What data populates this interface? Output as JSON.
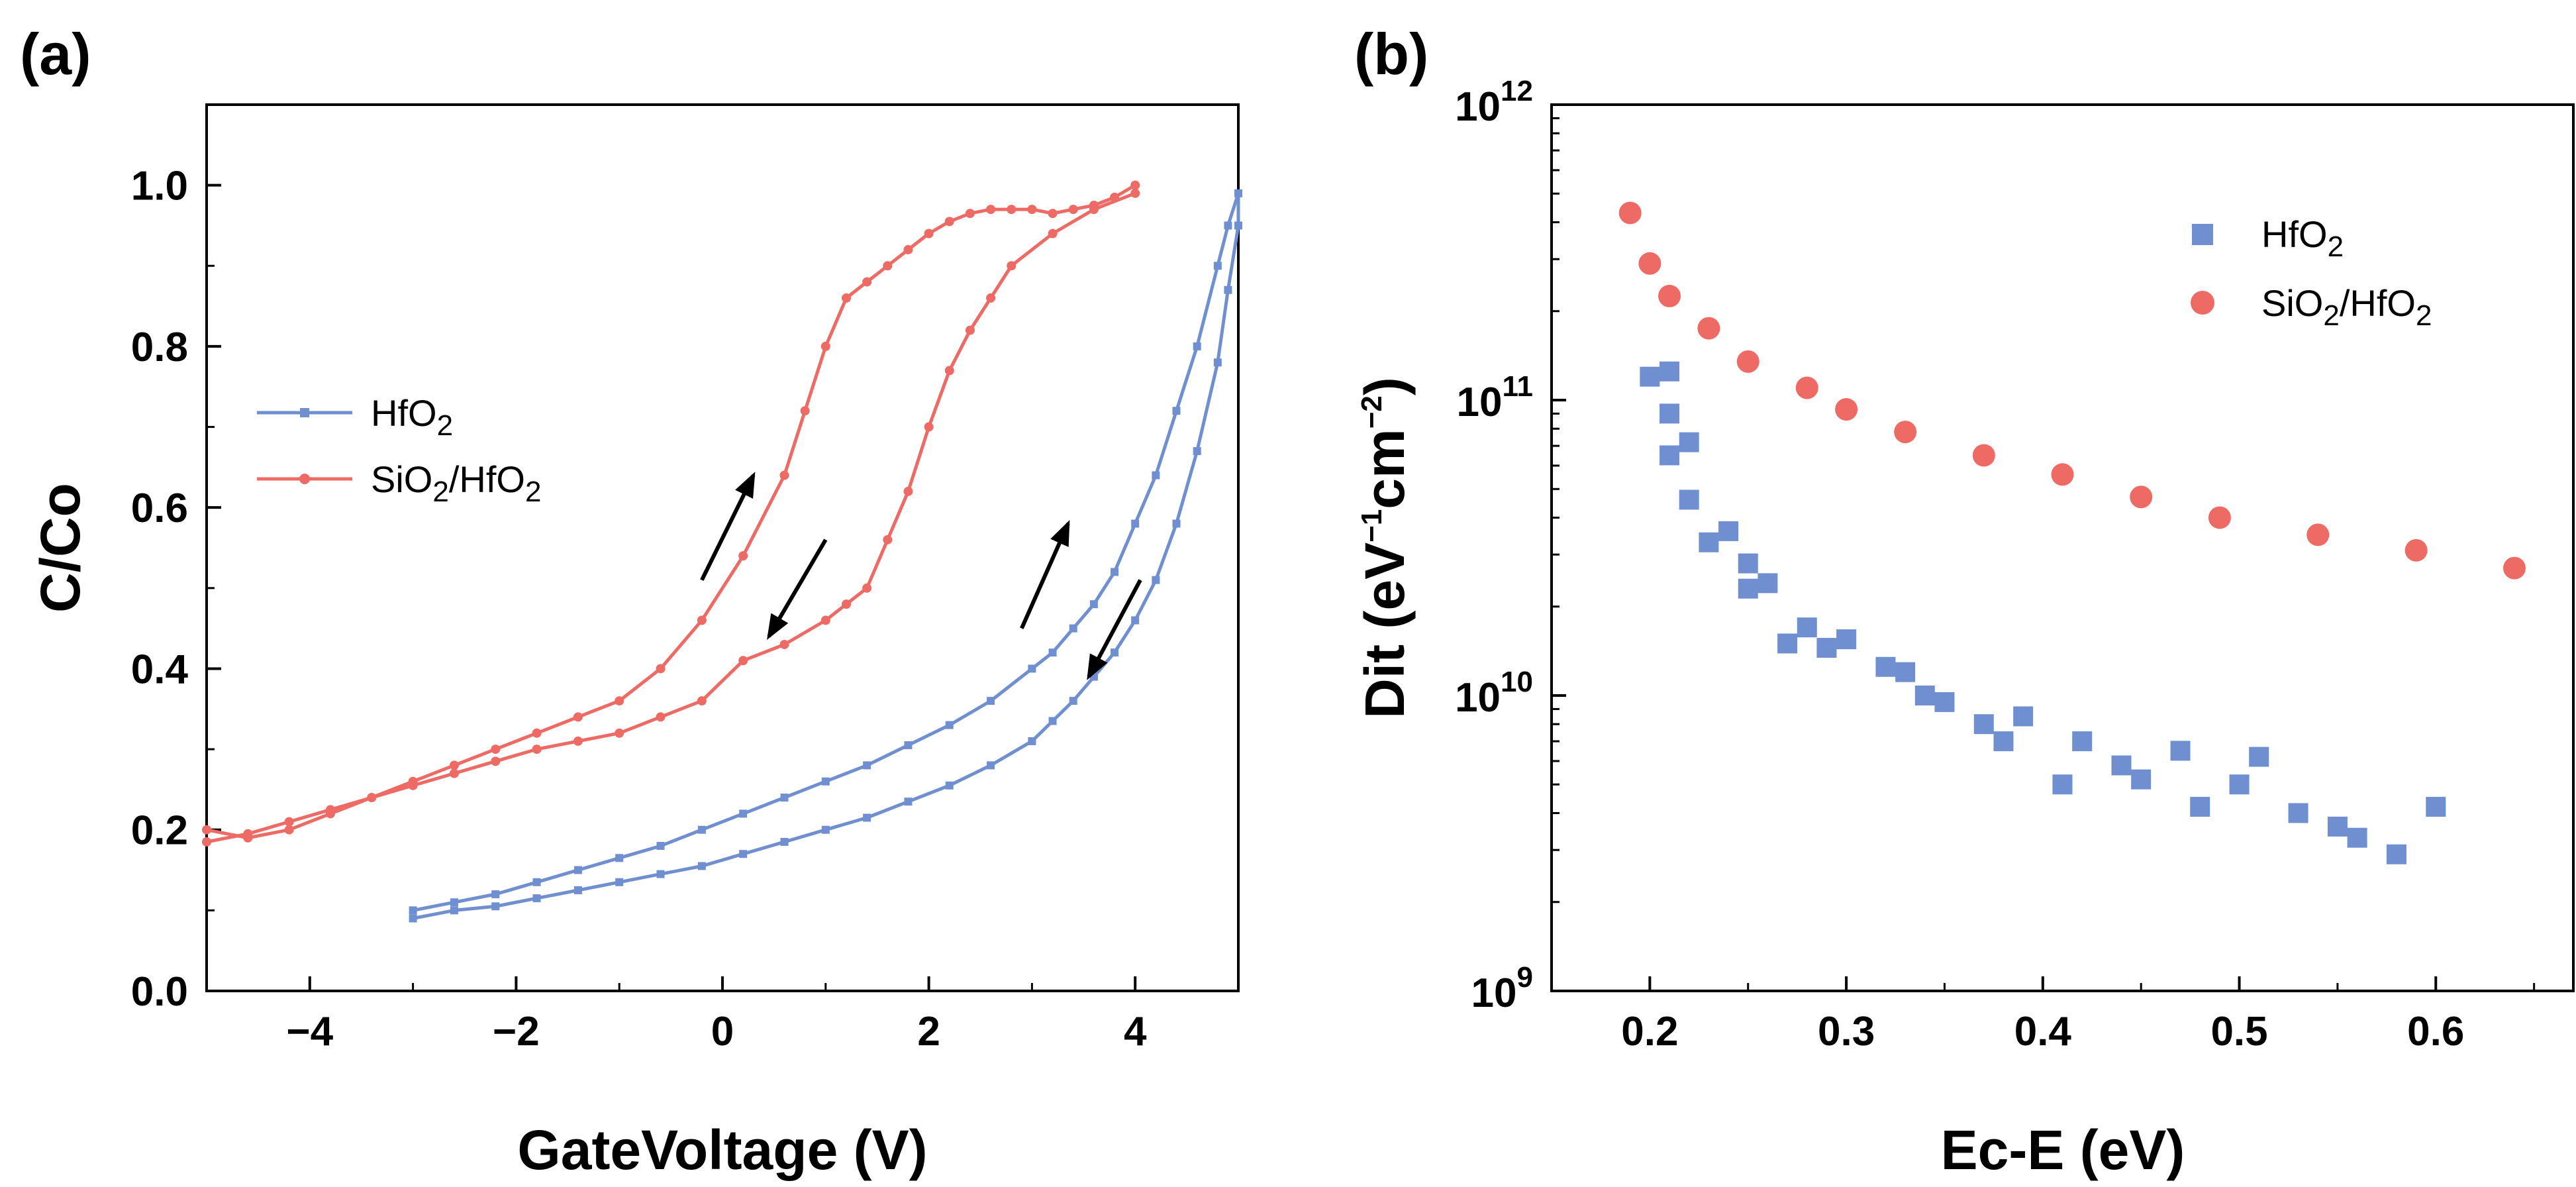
{
  "chart_data": [
    {
      "panel": "(a)",
      "type": "line",
      "xlabel": "GateVoltage (V)",
      "ylabel": "C/Co",
      "xlim": [
        -5,
        5
      ],
      "ylim": [
        0,
        1.1
      ],
      "xticks": [
        -4,
        -2,
        0,
        2,
        4
      ],
      "xtick_labels": [
        "−4",
        "−2",
        "0",
        "2",
        "4"
      ],
      "yticks": [
        0,
        0.2,
        0.4,
        0.6,
        0.8,
        1.0
      ],
      "ytick_labels": [
        "0.0",
        "0.2",
        "0.4",
        "0.6",
        "0.8",
        "1.0"
      ],
      "legend": {
        "position": "left-middle",
        "entries": [
          {
            "label": "HfO",
            "sub": "2"
          },
          {
            "label": "SiO",
            "sub": "2",
            "label2": "/HfO",
            "sub2": "2"
          }
        ]
      },
      "arrows": [
        {
          "series": "SiO2/HfO2",
          "direction": "up",
          "from": [
            -0.2,
            0.51
          ],
          "to": [
            0.3,
            0.64
          ]
        },
        {
          "series": "SiO2/HfO2",
          "direction": "down",
          "from": [
            1.0,
            0.56
          ],
          "to": [
            0.45,
            0.44
          ]
        },
        {
          "series": "HfO2",
          "direction": "up",
          "from": [
            2.9,
            0.45
          ],
          "to": [
            3.35,
            0.58
          ]
        },
        {
          "series": "HfO2",
          "direction": "down",
          "from": [
            4.05,
            0.51
          ],
          "to": [
            3.55,
            0.39
          ]
        }
      ],
      "series": [
        {
          "name": "HfO2",
          "color": "#6f8fd0",
          "x": [
            -3.0,
            -2.6,
            -2.2,
            -1.8,
            -1.4,
            -1.0,
            -0.6,
            -0.2,
            0.2,
            0.6,
            1.0,
            1.4,
            1.8,
            2.2,
            2.6,
            3.0,
            3.2,
            3.4,
            3.6,
            3.8,
            4.0,
            4.2,
            4.4,
            4.6,
            4.8,
            4.9,
            5.0,
            5.0,
            4.9,
            4.8,
            4.6,
            4.4,
            4.2,
            4.0,
            3.8,
            3.6,
            3.4,
            3.2,
            3.0,
            2.6,
            2.2,
            1.8,
            1.4,
            1.0,
            0.6,
            0.2,
            -0.2,
            -0.6,
            -1.0,
            -1.4,
            -1.8,
            -2.2,
            -2.6,
            -3.0
          ],
          "y": [
            0.1,
            0.11,
            0.12,
            0.135,
            0.15,
            0.165,
            0.18,
            0.2,
            0.22,
            0.24,
            0.26,
            0.28,
            0.305,
            0.33,
            0.36,
            0.4,
            0.42,
            0.45,
            0.48,
            0.52,
            0.58,
            0.64,
            0.72,
            0.8,
            0.9,
            0.95,
            0.99,
            0.95,
            0.87,
            0.78,
            0.67,
            0.58,
            0.51,
            0.46,
            0.42,
            0.39,
            0.36,
            0.335,
            0.31,
            0.28,
            0.255,
            0.235,
            0.215,
            0.2,
            0.185,
            0.17,
            0.155,
            0.145,
            0.135,
            0.125,
            0.115,
            0.105,
            0.1,
            0.09
          ]
        },
        {
          "name": "SiO2/HfO2",
          "color": "#ee6a64",
          "x": [
            -5.0,
            -4.6,
            -4.2,
            -3.8,
            -3.4,
            -3.0,
            -2.6,
            -2.2,
            -1.8,
            -1.4,
            -1.0,
            -0.6,
            -0.2,
            0.2,
            0.6,
            0.8,
            1.0,
            1.2,
            1.4,
            1.6,
            1.8,
            2.0,
            2.2,
            2.4,
            2.6,
            2.8,
            3.0,
            3.2,
            3.4,
            3.6,
            3.8,
            4.0,
            4.0,
            3.6,
            3.2,
            2.8,
            2.6,
            2.4,
            2.2,
            2.0,
            1.8,
            1.6,
            1.4,
            1.2,
            1.0,
            0.6,
            0.2,
            -0.2,
            -0.6,
            -1.0,
            -1.4,
            -1.8,
            -2.2,
            -2.6,
            -3.0,
            -3.4,
            -3.8,
            -4.2,
            -4.6,
            -5.0
          ],
          "y": [
            0.2,
            0.19,
            0.2,
            0.22,
            0.24,
            0.26,
            0.28,
            0.3,
            0.32,
            0.34,
            0.36,
            0.4,
            0.46,
            0.54,
            0.64,
            0.72,
            0.8,
            0.86,
            0.88,
            0.9,
            0.92,
            0.94,
            0.955,
            0.965,
            0.97,
            0.97,
            0.97,
            0.965,
            0.97,
            0.975,
            0.985,
            1.0,
            0.99,
            0.97,
            0.94,
            0.9,
            0.86,
            0.82,
            0.77,
            0.7,
            0.62,
            0.56,
            0.5,
            0.48,
            0.46,
            0.43,
            0.41,
            0.36,
            0.34,
            0.32,
            0.31,
            0.3,
            0.285,
            0.27,
            0.255,
            0.24,
            0.225,
            0.21,
            0.195,
            0.185
          ]
        }
      ]
    },
    {
      "panel": "(b)",
      "type": "scatter",
      "xlabel": "Ec-E (eV)",
      "ylabel": "Dit (eV⁻¹cm⁻²)",
      "ylabel_parts": {
        "base": "Dit (eV",
        "exp1": "−1",
        "mid": "cm",
        "exp2": "−2",
        "end": ")"
      },
      "xlim": [
        0.15,
        0.67
      ],
      "ylim": [
        1000000000.0,
        1000000000000.0
      ],
      "yscale": "log",
      "xticks": [
        0.2,
        0.3,
        0.4,
        0.5,
        0.6
      ],
      "xtick_labels": [
        "0.2",
        "0.3",
        "0.4",
        "0.5",
        "0.6"
      ],
      "yticks": [
        1000000000.0,
        10000000000.0,
        100000000000.0,
        1000000000000.0
      ],
      "ytick_labels": [
        {
          "base": "10",
          "exp": "9"
        },
        {
          "base": "10",
          "exp": "10"
        },
        {
          "base": "10",
          "exp": "11"
        },
        {
          "base": "10",
          "exp": "12"
        }
      ],
      "legend": {
        "position": "top-right",
        "entries": [
          {
            "label": "HfO",
            "sub": "2"
          },
          {
            "label": "SiO",
            "sub": "2",
            "label2": "/HfO",
            "sub2": "2"
          }
        ]
      },
      "series": [
        {
          "name": "HfO2",
          "marker": "square",
          "color": "#6f8fd0",
          "x": [
            0.2,
            0.21,
            0.21,
            0.21,
            0.22,
            0.22,
            0.23,
            0.24,
            0.25,
            0.25,
            0.26,
            0.27,
            0.28,
            0.29,
            0.3,
            0.32,
            0.33,
            0.34,
            0.35,
            0.37,
            0.38,
            0.39,
            0.41,
            0.42,
            0.44,
            0.45,
            0.47,
            0.48,
            0.5,
            0.51,
            0.53,
            0.55,
            0.56,
            0.58,
            0.6
          ],
          "y": [
            120000000000.0,
            125000000000.0,
            90000000000.0,
            65000000000.0,
            72000000000.0,
            46000000000.0,
            33000000000.0,
            36000000000.0,
            28000000000.0,
            23000000000.0,
            24000000000.0,
            15000000000.0,
            17000000000.0,
            14500000000.0,
            15500000000.0,
            12500000000.0,
            12000000000.0,
            10000000000.0,
            9500000000.0,
            8000000000.0,
            7000000000.0,
            8500000000.0,
            5000000000.0,
            7000000000.0,
            5800000000.0,
            5200000000.0,
            6500000000.0,
            4200000000.0,
            5000000000.0,
            6200000000.0,
            4000000000.0,
            3600000000.0,
            3300000000.0,
            2900000000.0,
            4200000000.0
          ]
        },
        {
          "name": "SiO2/HfO2",
          "marker": "circle",
          "color": "#ee6a64",
          "x": [
            0.19,
            0.2,
            0.21,
            0.23,
            0.25,
            0.28,
            0.3,
            0.33,
            0.37,
            0.41,
            0.45,
            0.49,
            0.54,
            0.59,
            0.64
          ],
          "y": [
            430000000000.0,
            290000000000.0,
            225000000000.0,
            175000000000.0,
            135000000000.0,
            110000000000.0,
            93000000000.0,
            78000000000.0,
            65000000000.0,
            56000000000.0,
            47000000000.0,
            40000000000.0,
            35000000000.0,
            31000000000.0,
            27000000000.0
          ]
        }
      ]
    }
  ]
}
